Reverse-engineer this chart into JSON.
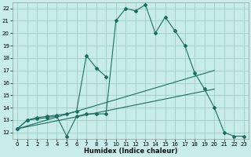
{
  "xlabel": "Humidex (Indice chaleur)",
  "background_color": "#c8ecea",
  "grid_color": "#a0ccc8",
  "line_color": "#1a6e62",
  "xlim": [
    -0.5,
    23.5
  ],
  "ylim": [
    11.5,
    22.5
  ],
  "xticks": [
    0,
    1,
    2,
    3,
    4,
    5,
    6,
    7,
    8,
    9,
    10,
    11,
    12,
    13,
    14,
    15,
    16,
    17,
    18,
    19,
    20,
    21,
    22,
    23
  ],
  "yticks": [
    12,
    13,
    14,
    15,
    16,
    17,
    18,
    19,
    20,
    21,
    22
  ],
  "main_x": [
    0,
    1,
    2,
    3,
    4,
    5,
    6,
    7,
    8,
    9,
    10,
    11,
    12,
    13,
    14,
    15,
    16,
    17,
    18,
    19,
    20,
    21,
    22,
    23
  ],
  "main_y": [
    12.3,
    13.0,
    13.1,
    13.2,
    13.3,
    11.7,
    13.3,
    13.5,
    13.5,
    13.5,
    21.0,
    22.0,
    21.8,
    22.3,
    20.0,
    21.3,
    20.2,
    19.0,
    16.8,
    15.5,
    14.0,
    12.0,
    11.7,
    11.7
  ],
  "tri_x": [
    0,
    1,
    2,
    3,
    4,
    5,
    6,
    7,
    8,
    9
  ],
  "tri_y": [
    12.3,
    13.0,
    13.2,
    13.3,
    13.4,
    13.5,
    13.7,
    18.2,
    17.2,
    16.5
  ],
  "trend1_x": [
    0,
    20
  ],
  "trend1_y": [
    12.3,
    17.0
  ],
  "trend2_x": [
    0,
    20
  ],
  "trend2_y": [
    12.3,
    15.5
  ]
}
